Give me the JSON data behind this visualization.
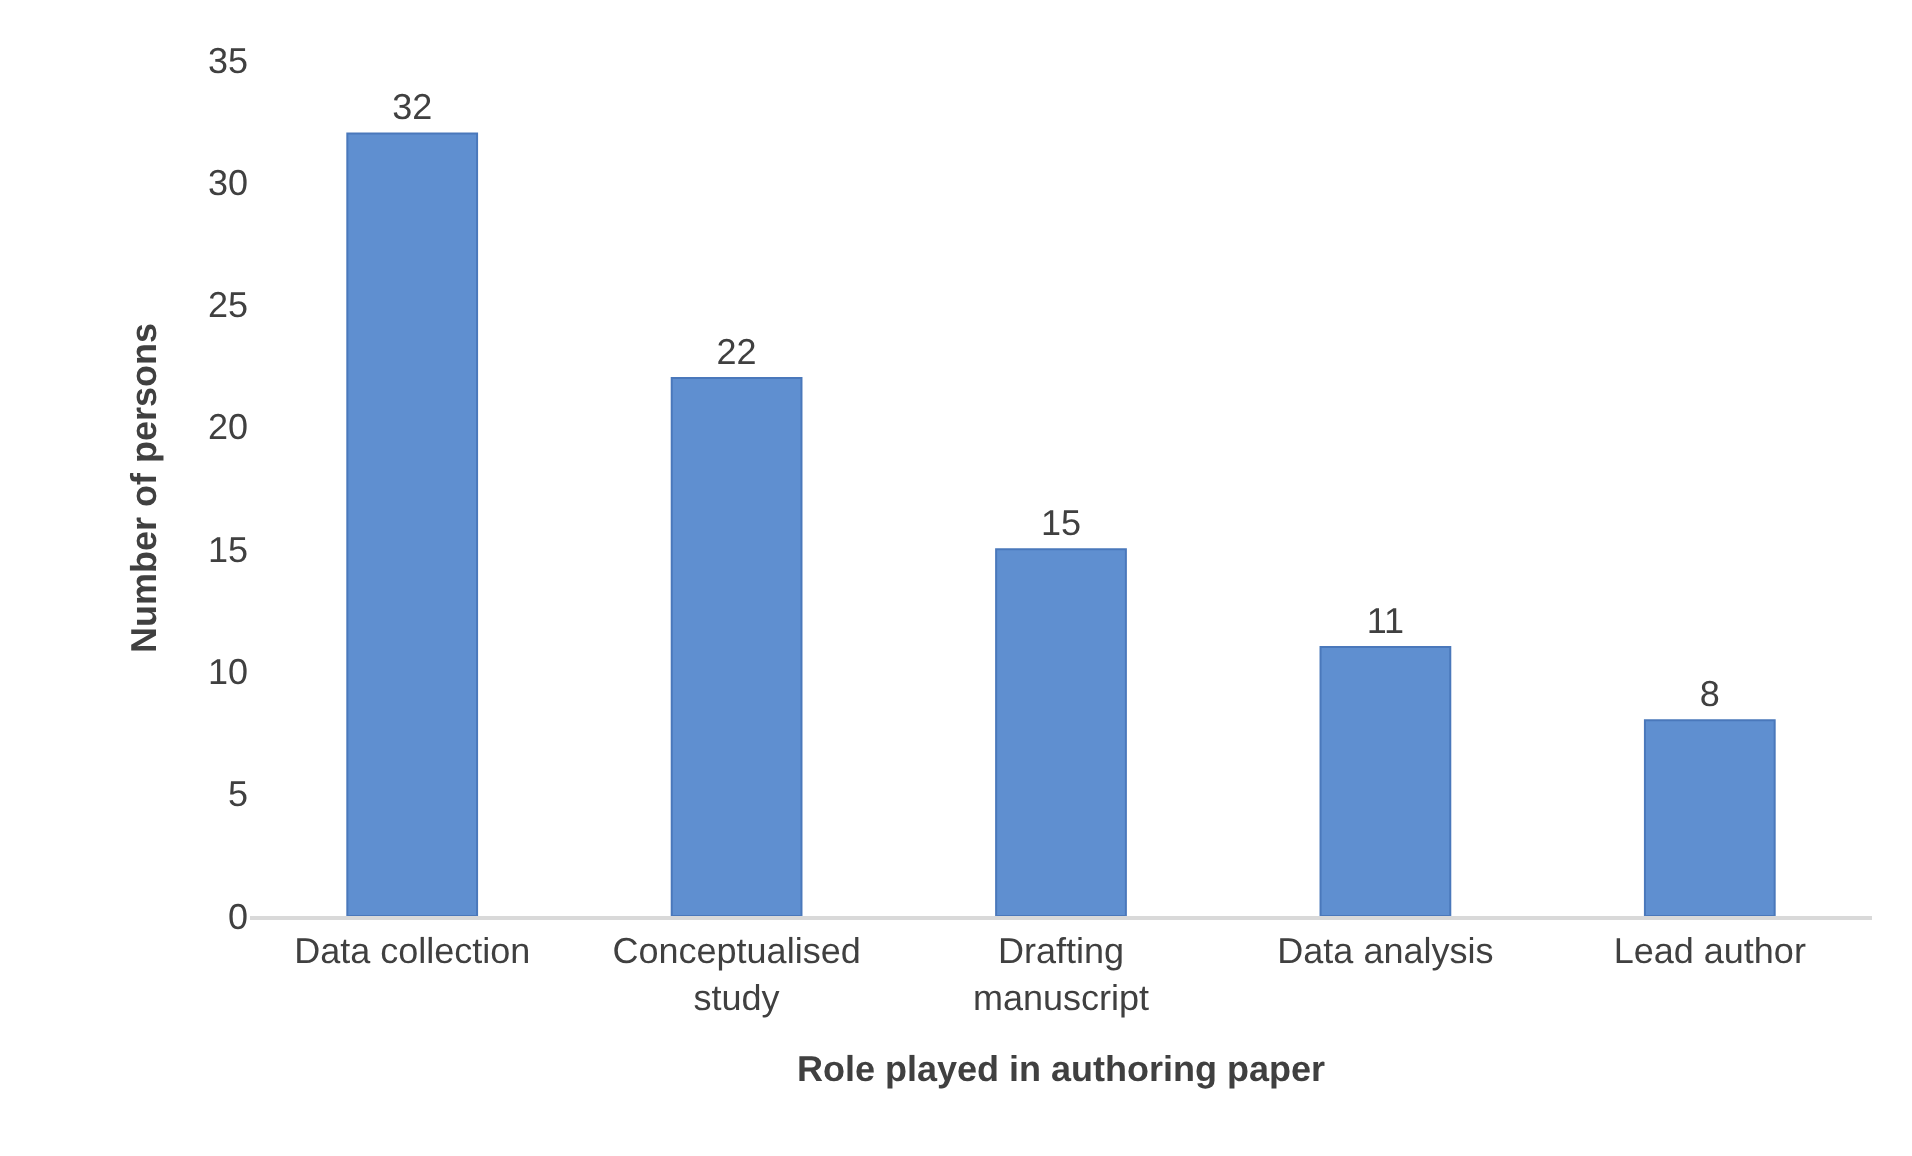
{
  "chart_data": {
    "type": "bar",
    "xlabel": "Role played in authoring paper",
    "ylabel": "Number of persons",
    "categories": [
      "Data collection",
      "Conceptualised study",
      "Drafting manuscript",
      "Data analysis",
      "Lead author"
    ],
    "values": [
      32,
      22,
      15,
      11,
      8
    ],
    "color": "#5f8fd0",
    "data_labels": true,
    "grid": false,
    "legend": false,
    "ylim": [
      0,
      35
    ],
    "yticks": [
      0,
      5,
      10,
      15,
      20,
      25,
      30,
      35
    ]
  }
}
